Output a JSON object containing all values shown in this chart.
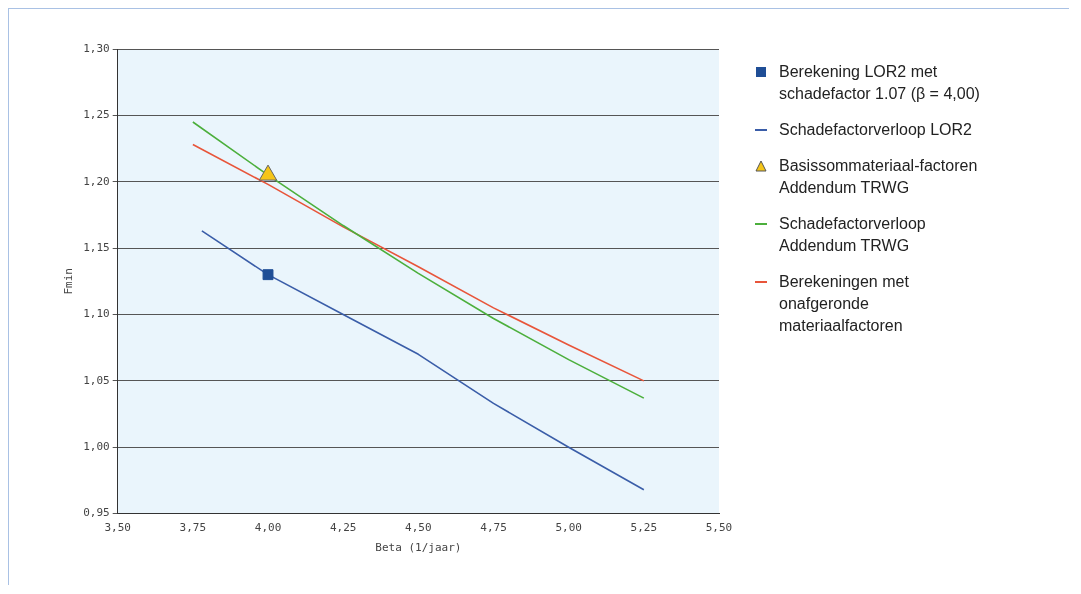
{
  "chart_data": {
    "type": "line",
    "xlabel": "Beta (1/jaar)",
    "ylabel": "Fmin",
    "xlim": [
      3.5,
      5.5
    ],
    "xticks": [
      {
        "value": 3.5,
        "label": "3,50"
      },
      {
        "value": 3.75,
        "label": "3,75"
      },
      {
        "value": 4,
        "label": "4,00"
      },
      {
        "value": 4.25,
        "label": "4,25"
      },
      {
        "value": 4.5,
        "label": "4,50"
      },
      {
        "value": 4.75,
        "label": "4,75"
      },
      {
        "value": 5,
        "label": "5,00"
      },
      {
        "value": 5.25,
        "label": "5,25"
      },
      {
        "value": 5.5,
        "label": "5,50"
      }
    ],
    "ylim": [
      0.95,
      1.3
    ],
    "yticks": [
      {
        "value": 0.95,
        "label": "0,95"
      },
      {
        "value": 1,
        "label": "1,00"
      },
      {
        "value": 1.05,
        "label": "1,05"
      },
      {
        "value": 1.1,
        "label": "1,10"
      },
      {
        "value": 1.15,
        "label": "1,15"
      },
      {
        "value": 1.2,
        "label": "1,20"
      },
      {
        "value": 1.25,
        "label": "1,25"
      },
      {
        "value": 1.3,
        "label": "1,30"
      }
    ],
    "grid": "y",
    "legend": "right",
    "series": [
      {
        "name": "Berekening LOR2 met schadefactor 1.07 (β = 4,00)",
        "type": "scatter",
        "marker": "square",
        "color": "#1f4e96",
        "x": [
          4.0
        ],
        "values": [
          1.13
        ]
      },
      {
        "name": "Schadefactorverloop LOR2",
        "type": "line",
        "marker": "none",
        "color": "#3a5da8",
        "x": [
          3.78,
          4.0,
          4.25,
          4.5,
          4.75,
          5.0,
          5.25
        ],
        "values": [
          1.163,
          1.13,
          1.1,
          1.07,
          1.033,
          1.0,
          0.968
        ]
      },
      {
        "name": "Basissommateriaal-factoren Addendum TRWG",
        "type": "scatter",
        "marker": "triangle",
        "color": "#f5c518",
        "x": [
          4.0
        ],
        "values": [
          1.205
        ]
      },
      {
        "name": "Schadefactorverloop Addendum TRWG",
        "type": "line",
        "marker": "none",
        "color": "#4caf3c",
        "x": [
          3.75,
          4.0,
          4.25,
          4.5,
          4.75,
          5.0,
          5.25
        ],
        "values": [
          1.245,
          1.205,
          1.167,
          1.131,
          1.097,
          1.066,
          1.037
        ]
      },
      {
        "name": "Berekeningen met onafgeronde materiaalfactoren",
        "type": "line",
        "marker": "none",
        "color": "#e8553a",
        "x": [
          3.75,
          4.0,
          4.25,
          4.5,
          4.75,
          5.0,
          5.25
        ],
        "values": [
          1.228,
          1.198,
          1.166,
          1.136,
          1.105,
          1.077,
          1.05
        ]
      }
    ]
  }
}
